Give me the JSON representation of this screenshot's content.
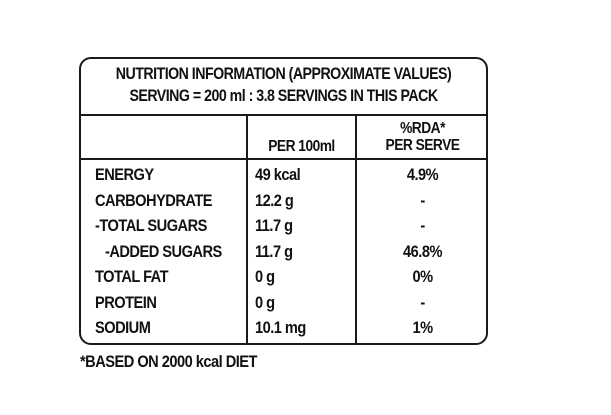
{
  "label": {
    "title_line1": "NUTRITION INFORMATION (APPROXIMATE VALUES)",
    "title_line2": "SERVING = 200 ml : 3.8 SERVINGS IN THIS PACK",
    "header": {
      "per100": "PER 100ml",
      "rda_line1": "%RDA*",
      "rda_line2": "PER SERVE"
    },
    "rows": [
      {
        "name": "ENERGY",
        "value": "49 kcal",
        "rda": "4.9%"
      },
      {
        "name": "CARBOHYDRATE",
        "value": "12.2 g",
        "rda": "-"
      },
      {
        "name": "-TOTAL SUGARS",
        "value": "11.7 g",
        "rda": "-"
      },
      {
        "name": "-ADDED SUGARS",
        "value": "11.7 g",
        "rda": "46.8%"
      },
      {
        "name": "TOTAL FAT",
        "value": "0 g",
        "rda": "0%"
      },
      {
        "name": "PROTEIN",
        "value": "0 g",
        "rda": "-"
      },
      {
        "name": "SODIUM",
        "value": "10.1 mg",
        "rda": "1%"
      }
    ],
    "footnote": "*BASED ON 2000 kcal DIET"
  }
}
